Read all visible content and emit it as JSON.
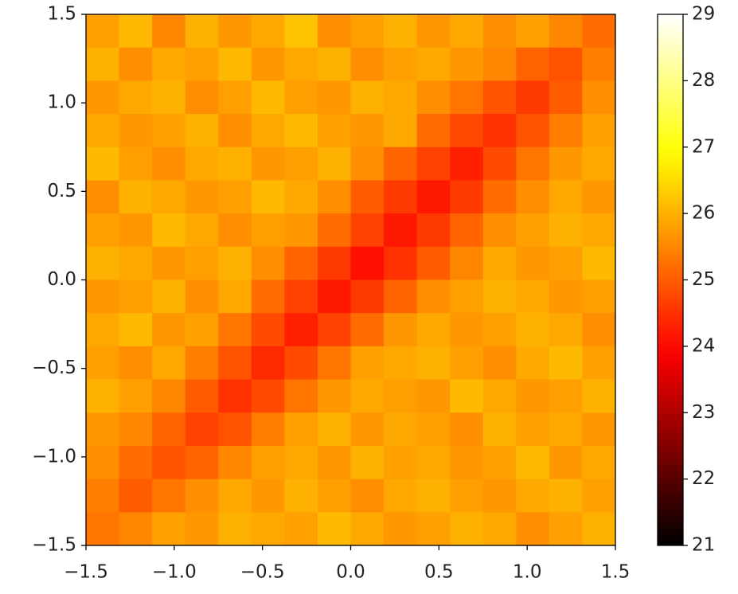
{
  "chart_data": {
    "type": "heatmap",
    "colormap": "hot",
    "xlim": [
      -1.5,
      1.5
    ],
    "ylim": [
      -1.5,
      1.5
    ],
    "clim": [
      21,
      29
    ],
    "xticks": [
      {
        "value": -1.5,
        "label": "−1.5"
      },
      {
        "value": -1.0,
        "label": "−1.0"
      },
      {
        "value": -0.5,
        "label": "−0.5"
      },
      {
        "value": 0,
        "label": "0.0"
      },
      0.5,
      {
        "value": 1.0,
        "label": "1.0"
      },
      1.5
    ],
    "yticks": [
      {
        "value": -1.5,
        "label": "−1.5"
      },
      {
        "value": -1.0,
        "label": "−1.0"
      },
      {
        "value": -0.5,
        "label": "−0.5"
      },
      {
        "value": 0,
        "label": "0.0"
      },
      0.5,
      {
        "value": 1.0,
        "label": "1.0"
      },
      1.5
    ],
    "cticks": [
      21,
      22,
      23,
      24,
      25,
      26,
      27,
      28,
      29
    ],
    "z": [
      [
        25.8,
        26.1,
        25.5,
        26.0,
        25.7,
        25.9,
        26.2,
        25.6,
        25.8,
        26.0,
        25.7,
        25.9,
        25.6,
        25.8,
        25.5,
        25.2
      ],
      [
        26.0,
        25.6,
        25.9,
        25.8,
        26.1,
        25.7,
        25.9,
        26.0,
        25.6,
        25.8,
        25.9,
        25.7,
        25.5,
        25.1,
        24.9,
        25.4
      ],
      [
        25.7,
        25.9,
        26.0,
        25.6,
        25.8,
        26.1,
        25.8,
        25.7,
        26.0,
        25.9,
        25.6,
        25.3,
        24.9,
        24.6,
        25.0,
        25.6
      ],
      [
        25.9,
        25.7,
        25.8,
        26.0,
        25.6,
        25.9,
        26.1,
        25.8,
        25.7,
        25.9,
        25.2,
        24.8,
        24.5,
        24.9,
        25.4,
        25.8
      ],
      [
        26.1,
        25.8,
        25.6,
        25.9,
        26.0,
        25.7,
        25.8,
        26.0,
        25.6,
        25.1,
        24.7,
        24.3,
        24.8,
        25.3,
        25.7,
        25.9
      ],
      [
        25.6,
        26.0,
        25.9,
        25.7,
        25.8,
        26.1,
        25.9,
        25.6,
        25.0,
        24.6,
        24.2,
        24.6,
        25.2,
        25.6,
        25.9,
        25.7
      ],
      [
        25.8,
        25.7,
        26.1,
        25.9,
        25.6,
        25.8,
        25.7,
        25.2,
        24.7,
        24.2,
        24.6,
        25.1,
        25.6,
        25.8,
        26.0,
        25.9
      ],
      [
        26.0,
        25.9,
        25.7,
        25.8,
        26.0,
        25.6,
        25.1,
        24.6,
        24.1,
        24.5,
        25.0,
        25.5,
        25.9,
        25.7,
        25.8,
        26.1
      ],
      [
        25.7,
        25.8,
        26.0,
        25.6,
        25.9,
        25.2,
        24.7,
        24.2,
        24.6,
        25.1,
        25.6,
        25.8,
        26.0,
        25.9,
        25.7,
        25.8
      ],
      [
        25.9,
        26.1,
        25.7,
        25.8,
        25.3,
        24.8,
        24.3,
        24.7,
        25.2,
        25.7,
        25.9,
        25.7,
        25.8,
        26.0,
        25.9,
        25.6
      ],
      [
        25.8,
        25.6,
        25.9,
        25.4,
        24.9,
        24.4,
        24.8,
        25.3,
        25.8,
        25.9,
        26.0,
        25.8,
        25.6,
        25.9,
        26.1,
        25.8
      ],
      [
        26.0,
        25.8,
        25.5,
        25.0,
        24.5,
        24.8,
        25.3,
        25.7,
        25.9,
        25.8,
        25.7,
        26.1,
        25.9,
        25.7,
        25.8,
        26.0
      ],
      [
        25.7,
        25.5,
        25.1,
        24.7,
        24.9,
        25.4,
        25.8,
        26.0,
        25.7,
        25.9,
        25.8,
        25.6,
        26.0,
        25.8,
        25.9,
        25.7
      ],
      [
        25.6,
        25.2,
        24.9,
        25.1,
        25.5,
        25.8,
        25.9,
        25.7,
        26.0,
        25.8,
        25.9,
        25.7,
        25.8,
        26.1,
        25.7,
        25.9
      ],
      [
        25.4,
        25.0,
        25.3,
        25.6,
        25.9,
        25.7,
        26.0,
        25.8,
        25.6,
        25.9,
        26.0,
        25.8,
        25.7,
        25.9,
        26.0,
        25.8
      ],
      [
        25.3,
        25.5,
        25.8,
        25.7,
        26.0,
        25.9,
        25.8,
        26.1,
        25.9,
        25.7,
        25.8,
        26.0,
        25.9,
        25.6,
        25.8,
        26.0
      ]
    ]
  }
}
